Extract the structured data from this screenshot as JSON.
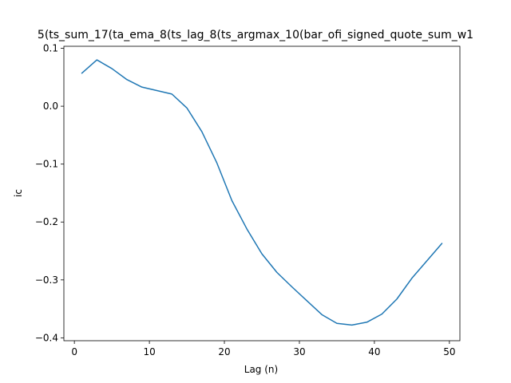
{
  "chart_data": {
    "type": "line",
    "title": "5(ts_sum_17(ta_ema_8(ts_lag_8(ts_argmax_10(bar_ofi_signed_quote_sum_w1",
    "xlabel": "Lag (n)",
    "ylabel": "ic",
    "xlim": [
      -1.4,
      51.4
    ],
    "ylim": [
      -0.405,
      0.1035
    ],
    "xticks": [
      0,
      10,
      20,
      30,
      40,
      50
    ],
    "xtick_labels": [
      "0",
      "10",
      "20",
      "30",
      "40",
      "50"
    ],
    "yticks": [
      0.1,
      0.0,
      -0.1,
      -0.2,
      -0.3,
      -0.4
    ],
    "ytick_labels": [
      "0.1",
      "0.0",
      "−0.1",
      "−0.2",
      "−0.3",
      "−0.4"
    ],
    "grid": false,
    "series": [
      {
        "color": "#1f77b4",
        "x": [
          1,
          3,
          5,
          7,
          9,
          11,
          13,
          15,
          17,
          19,
          21,
          23,
          25,
          27,
          29,
          31,
          33,
          35,
          37,
          39,
          41,
          43,
          45,
          47,
          49
        ],
        "y": [
          0.057,
          0.08,
          0.065,
          0.046,
          0.033,
          0.027,
          0.021,
          -0.003,
          -0.044,
          -0.098,
          -0.163,
          -0.212,
          -0.255,
          -0.287,
          -0.312,
          -0.336,
          -0.36,
          -0.375,
          -0.378,
          -0.373,
          -0.359,
          -0.333,
          -0.297,
          -0.267,
          -0.237
        ]
      }
    ]
  }
}
